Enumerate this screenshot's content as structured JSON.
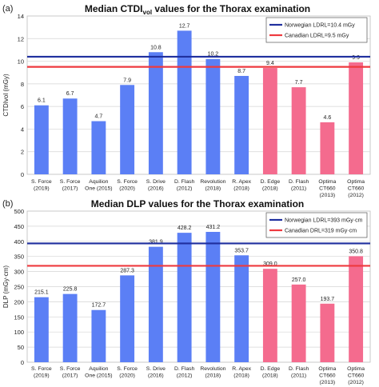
{
  "colors": {
    "blue_bar": "#5b7ff5",
    "pink_bar": "#f46b8e",
    "norway_line": "#1f2f9e",
    "canada_line": "#ee3a3f",
    "grid": "#d4d4d4",
    "axis_text": "#222222"
  },
  "chart_data": [
    {
      "panel_label": "(a)",
      "type": "bar",
      "title_main": "Median CTDI",
      "title_sub": "vol",
      "title_rest": " values for the Thorax examination",
      "ylabel": "CTDIvol (mGy)",
      "ylim": [
        0,
        14
      ],
      "yticks": [
        0,
        2,
        4,
        6,
        8,
        10,
        12,
        14
      ],
      "grid": true,
      "categories": [
        [
          "S. Force",
          "(2019)"
        ],
        [
          "S. Force",
          "(2017)"
        ],
        [
          "Aquilion",
          "One (2015)"
        ],
        [
          "S. Force",
          "(2020)"
        ],
        [
          "S. Drive",
          "(2016)"
        ],
        [
          "D. Flash",
          "(2012)"
        ],
        [
          "Revolution",
          "(2018)"
        ],
        [
          "R. Apex",
          "(2018)"
        ],
        [
          "D. Edge",
          "(2018)"
        ],
        [
          "D. Flash",
          "(2011)"
        ],
        [
          "Optima",
          "CT660",
          "(2013)"
        ],
        [
          "Optima",
          "CT660",
          "(2012)"
        ]
      ],
      "values": [
        6.1,
        6.7,
        4.7,
        7.9,
        10.8,
        12.7,
        10.2,
        8.7,
        9.4,
        7.7,
        4.6,
        9.9
      ],
      "value_labels": [
        "6.1",
        "6.7",
        "4.7",
        "7.9",
        "10.8",
        "12.7",
        "10.2",
        "8.7",
        "9.4",
        "7.7",
        "4.6",
        "9.9"
      ],
      "bar_groups": [
        "blue",
        "blue",
        "blue",
        "blue",
        "blue",
        "blue",
        "blue",
        "blue",
        "pink",
        "pink",
        "pink",
        "pink"
      ],
      "reference_lines": [
        {
          "label": "Norwegian LDRL=10.4 mGy",
          "value": 10.4,
          "color": "norway_line"
        },
        {
          "label": "Canadian LDRL=9.5 mGy",
          "value": 9.5,
          "color": "canada_line"
        }
      ],
      "legend_position": "top-right"
    },
    {
      "panel_label": "(b)",
      "type": "bar",
      "title_main": "Median DLP values for the Thorax examination",
      "title_sub": "",
      "title_rest": "",
      "ylabel": "DLP (mGy·cm)",
      "ylim": [
        0,
        500
      ],
      "yticks": [
        0,
        50,
        100,
        150,
        200,
        250,
        300,
        350,
        400,
        450,
        500
      ],
      "grid": true,
      "categories": [
        [
          "S. Force",
          "(2019)"
        ],
        [
          "S. Force",
          "(2017)"
        ],
        [
          "Aquilion",
          "One (2015)"
        ],
        [
          "S. Force",
          "(2020)"
        ],
        [
          "S. Drive",
          "(2016)"
        ],
        [
          "D. Flash",
          "(2012)"
        ],
        [
          "Revolution",
          "(2018)"
        ],
        [
          "R. Apex",
          "(2018)"
        ],
        [
          "D. Edge",
          "(2018)"
        ],
        [
          "D. Flash",
          "(2011)"
        ],
        [
          "Optima",
          "CT660",
          "(2013)"
        ],
        [
          "Optima",
          "CT660",
          "(2012)"
        ]
      ],
      "values": [
        215.1,
        225.8,
        172.7,
        287.3,
        381.9,
        428.2,
        431.2,
        353.7,
        309.0,
        257.0,
        193.7,
        350.8
      ],
      "value_labels": [
        "215.1",
        "225.8",
        "172.7",
        "287.3",
        "381.9",
        "428.2",
        "431.2",
        "353.7",
        "309.0",
        "257.0",
        "193.7",
        "350.8"
      ],
      "bar_groups": [
        "blue",
        "blue",
        "blue",
        "blue",
        "blue",
        "blue",
        "blue",
        "blue",
        "pink",
        "pink",
        "pink",
        "pink"
      ],
      "reference_lines": [
        {
          "label": "Norwegian LDRL=393 mGy·cm",
          "value": 393,
          "color": "norway_line"
        },
        {
          "label": "Canadian DRL=319 mGy·cm",
          "value": 319,
          "color": "canada_line"
        }
      ],
      "legend_position": "top-right"
    }
  ]
}
